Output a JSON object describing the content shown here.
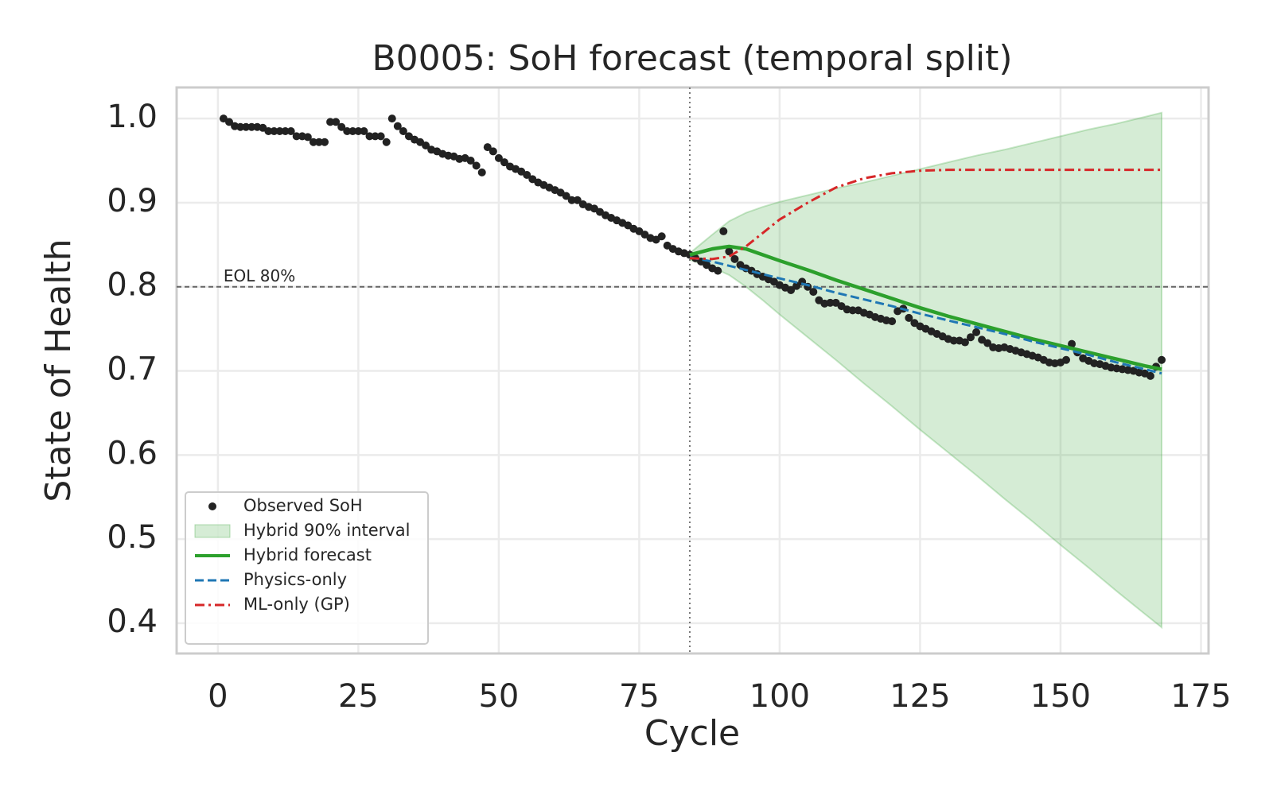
{
  "chart_data": {
    "type": "line",
    "title": "B0005: SoH forecast (temporal split)",
    "xlabel": "Cycle",
    "ylabel": "State of Health",
    "xlim": [
      -7.35,
      176.35
    ],
    "ylim": [
      0.364,
      1.037
    ],
    "xticks": [
      0,
      25,
      50,
      75,
      100,
      125,
      150,
      175
    ],
    "yticks": [
      0.4,
      0.5,
      0.6,
      0.7,
      0.8,
      0.9,
      {
        "value": 1,
        "label": "1.0"
      }
    ],
    "grid": true,
    "legend": "lower left",
    "eol": {
      "value": 0.8,
      "label": "EOL 80%",
      "color": "#666666"
    },
    "split": {
      "value": 84,
      "color": "#777777"
    },
    "observed": {
      "name": "Observed SoH",
      "color": "#222222",
      "x": [
        1,
        2,
        3,
        4,
        5,
        6,
        7,
        8,
        9,
        10,
        11,
        12,
        13,
        14,
        15,
        16,
        17,
        18,
        19,
        20,
        21,
        22,
        23,
        24,
        25,
        26,
        27,
        28,
        29,
        30,
        31,
        32,
        33,
        34,
        35,
        36,
        37,
        38,
        39,
        40,
        41,
        42,
        43,
        44,
        45,
        46,
        47,
        48,
        49,
        50,
        51,
        52,
        53,
        54,
        55,
        56,
        57,
        58,
        59,
        60,
        61,
        62,
        63,
        64,
        65,
        66,
        67,
        68,
        69,
        70,
        71,
        72,
        73,
        74,
        75,
        76,
        77,
        78,
        79,
        80,
        81,
        82,
        83,
        84,
        85,
        86,
        87,
        88,
        89,
        90,
        91,
        92,
        93,
        94,
        95,
        96,
        97,
        98,
        99,
        100,
        101,
        102,
        103,
        104,
        105,
        106,
        107,
        108,
        109,
        110,
        111,
        112,
        113,
        114,
        115,
        116,
        117,
        118,
        119,
        120,
        121,
        122,
        123,
        124,
        125,
        126,
        127,
        128,
        129,
        130,
        131,
        132,
        133,
        134,
        135,
        136,
        137,
        138,
        139,
        140,
        141,
        142,
        143,
        144,
        145,
        146,
        147,
        148,
        149,
        150,
        151,
        152,
        153,
        154,
        155,
        156,
        157,
        158,
        159,
        160,
        161,
        162,
        163,
        164,
        165,
        166,
        167,
        168
      ],
      "values": [
        1.0,
        0.996,
        0.991,
        0.99,
        0.99,
        0.99,
        0.99,
        0.989,
        0.985,
        0.985,
        0.985,
        0.985,
        0.985,
        0.979,
        0.979,
        0.978,
        0.972,
        0.972,
        0.972,
        0.996,
        0.996,
        0.99,
        0.985,
        0.985,
        0.985,
        0.985,
        0.979,
        0.979,
        0.979,
        0.972,
        1.0,
        0.991,
        0.985,
        0.979,
        0.975,
        0.972,
        0.968,
        0.963,
        0.961,
        0.958,
        0.956,
        0.955,
        0.952,
        0.953,
        0.95,
        0.944,
        0.936,
        0.966,
        0.961,
        0.953,
        0.948,
        0.943,
        0.94,
        0.937,
        0.933,
        0.928,
        0.924,
        0.921,
        0.918,
        0.915,
        0.912,
        0.908,
        0.903,
        0.903,
        0.898,
        0.895,
        0.893,
        0.889,
        0.885,
        0.882,
        0.879,
        0.876,
        0.873,
        0.869,
        0.866,
        0.862,
        0.858,
        0.856,
        0.86,
        0.849,
        0.845,
        0.842,
        0.84,
        0.838,
        0.834,
        0.83,
        0.826,
        0.822,
        0.819,
        0.866,
        0.842,
        0.833,
        0.826,
        0.822,
        0.819,
        0.815,
        0.812,
        0.809,
        0.806,
        0.802,
        0.799,
        0.796,
        0.801,
        0.806,
        0.8,
        0.794,
        0.784,
        0.78,
        0.781,
        0.781,
        0.777,
        0.773,
        0.772,
        0.772,
        0.769,
        0.767,
        0.764,
        0.762,
        0.76,
        0.759,
        0.771,
        0.774,
        0.763,
        0.757,
        0.753,
        0.75,
        0.747,
        0.744,
        0.741,
        0.738,
        0.736,
        0.736,
        0.734,
        0.74,
        0.746,
        0.737,
        0.733,
        0.728,
        0.727,
        0.728,
        0.726,
        0.724,
        0.722,
        0.72,
        0.718,
        0.716,
        0.713,
        0.71,
        0.709,
        0.71,
        0.713,
        0.732,
        0.722,
        0.715,
        0.712,
        0.709,
        0.708,
        0.706,
        0.704,
        0.703,
        0.702,
        0.701,
        0.7,
        0.698,
        0.697,
        0.694,
        0.705,
        0.713
      ]
    },
    "forecast_x": [
      84,
      88,
      91,
      94,
      97,
      100,
      105,
      110,
      115,
      120,
      125,
      130,
      135,
      140,
      145,
      150,
      155,
      160,
      165,
      168
    ],
    "interval": {
      "name": "Hybrid 90% interval",
      "color": "#2ca02c",
      "upper": [
        0.84,
        0.862,
        0.878,
        0.888,
        0.895,
        0.901,
        0.909,
        0.917,
        0.924,
        0.932,
        0.94,
        0.948,
        0.956,
        0.963,
        0.971,
        0.979,
        0.987,
        0.994,
        1.002,
        1.007
      ],
      "lower": [
        0.832,
        0.823,
        0.814,
        0.8,
        0.784,
        0.767,
        0.74,
        0.713,
        0.685,
        0.658,
        0.63,
        0.603,
        0.576,
        0.548,
        0.521,
        0.493,
        0.466,
        0.438,
        0.411,
        0.395
      ]
    },
    "series": [
      {
        "name": "Hybrid forecast",
        "color": "#2ca02c",
        "style": "solid",
        "values": [
          0.838,
          0.845,
          0.848,
          0.845,
          0.838,
          0.831,
          0.82,
          0.808,
          0.797,
          0.786,
          0.775,
          0.765,
          0.756,
          0.747,
          0.738,
          0.73,
          0.722,
          0.714,
          0.706,
          0.702
        ]
      },
      {
        "name": "Physics-only",
        "color": "#1f77b4",
        "style": "dashed",
        "values": [
          0.835,
          0.83,
          0.825,
          0.82,
          0.815,
          0.81,
          0.802,
          0.793,
          0.785,
          0.777,
          0.768,
          0.76,
          0.752,
          0.744,
          0.735,
          0.727,
          0.719,
          0.71,
          0.702,
          0.697
        ]
      },
      {
        "name": "ML-only (GP)",
        "color": "#d62728",
        "style": "dashdot",
        "values": [
          0.834,
          0.833,
          0.836,
          0.848,
          0.864,
          0.88,
          0.9,
          0.918,
          0.929,
          0.935,
          0.938,
          0.939,
          0.939,
          0.939,
          0.939,
          0.939,
          0.939,
          0.939,
          0.939,
          0.939
        ]
      }
    ]
  }
}
